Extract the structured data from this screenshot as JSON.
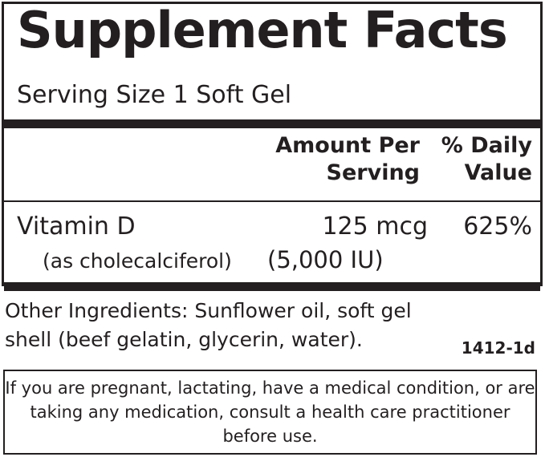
{
  "title": "Supplement Facts",
  "serving_size": "Serving Size 1 Soft Gel",
  "headers": {
    "amount_line1": "Amount Per",
    "amount_line2": "Serving",
    "dv_line1": "% Daily",
    "dv_line2": "Value"
  },
  "nutrient": {
    "name": "Vitamin D",
    "amount": "125 mcg",
    "daily_value": "625%",
    "form": "(as cholecalciferol)",
    "amount_iu": "(5,000 IU)"
  },
  "other_ingredients": "Other Ingredients: Sunflower oil, soft gel shell (beef gelatin, glycerin, water).",
  "code": "1412-1d",
  "warning": "If you are pregnant, lactating, have a medical condition, or are taking any medication, consult a health care practitioner before use."
}
